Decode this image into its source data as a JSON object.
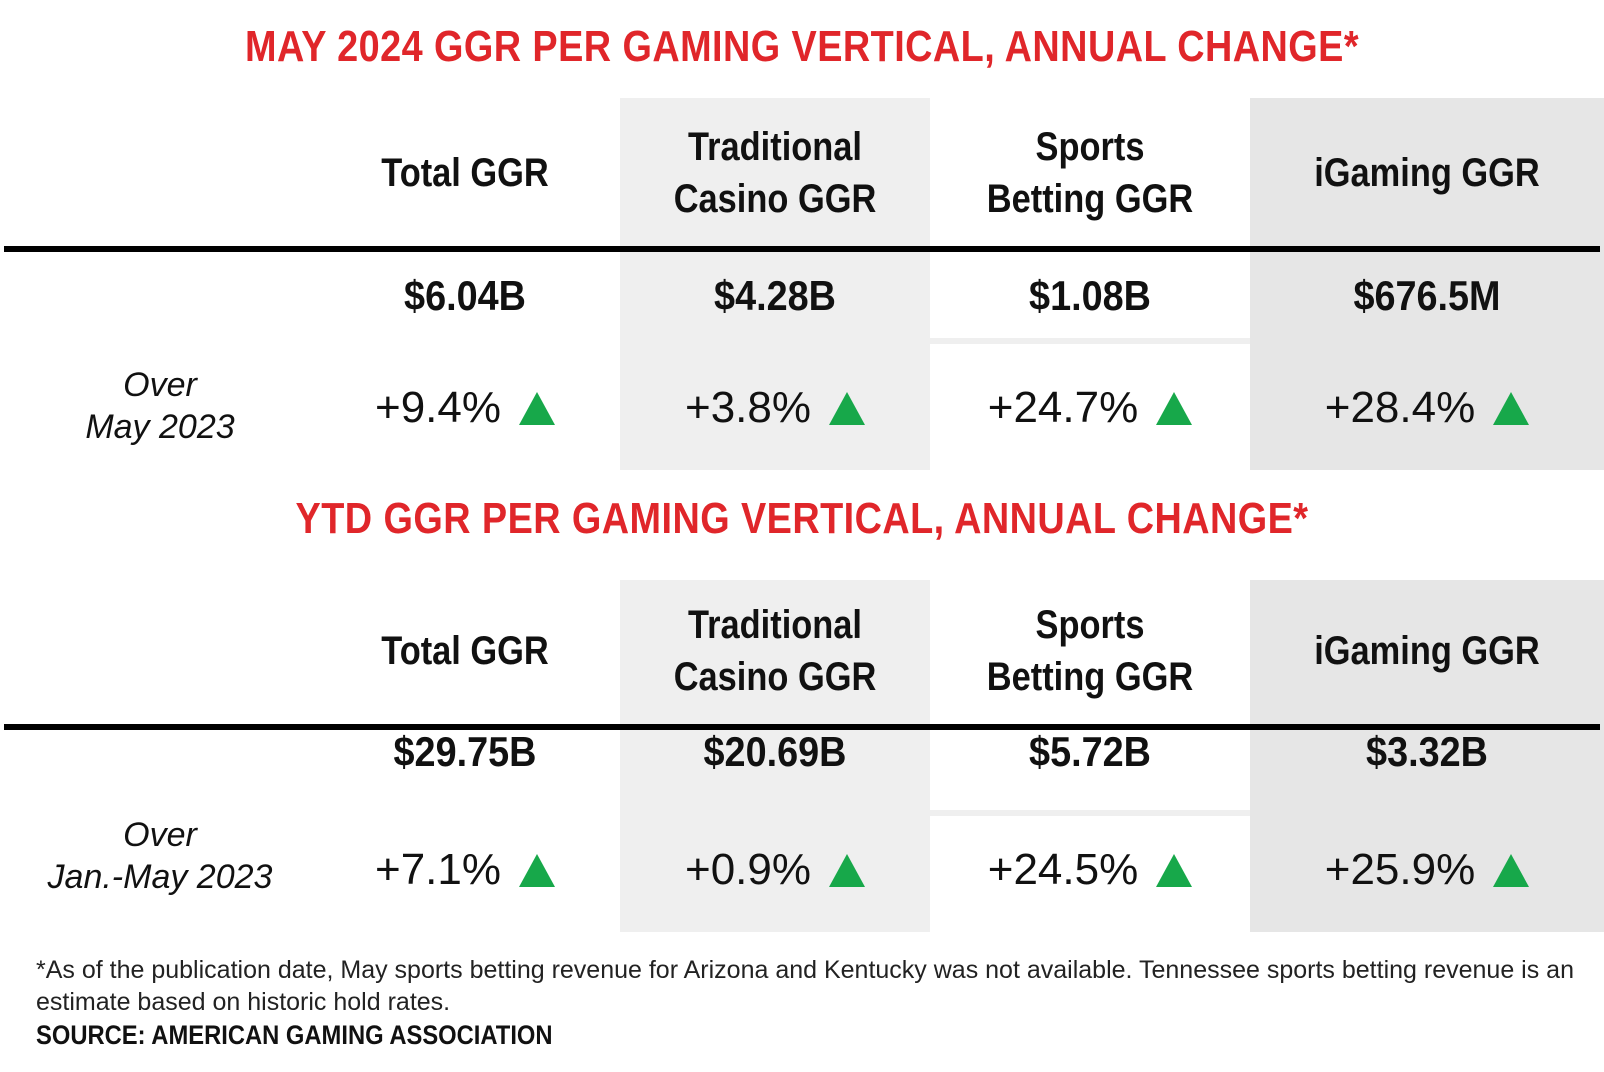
{
  "colors": {
    "title": "#e0262a",
    "up_arrow": "#17a84a",
    "shade": "#efefef",
    "shade_dark": "#e6e6e6"
  },
  "icons": {
    "change_indicator": "up-triangle-icon"
  },
  "columns": [
    "Total GGR",
    "Traditional\nCasino GGR",
    "Sports\nBetting GGR",
    "iGaming GGR"
  ],
  "chart_data": [
    {
      "type": "table",
      "title": "MAY 2024 GGR PER GAMING VERTICAL, ANNUAL CHANGE*",
      "row_label": "Over\nMay 2023",
      "cells": [
        {
          "value": "$6.04B",
          "change": "+9.4%",
          "direction": "up"
        },
        {
          "value": "$4.28B",
          "change": "+3.8%",
          "direction": "up"
        },
        {
          "value": "$1.08B",
          "change": "+24.7%",
          "direction": "up"
        },
        {
          "value": "$676.5M",
          "change": "+28.4%",
          "direction": "up"
        }
      ]
    },
    {
      "type": "table",
      "title": "YTD GGR PER GAMING VERTICAL, ANNUAL CHANGE*",
      "row_label": "Over\nJan.-May 2023",
      "cells": [
        {
          "value": "$29.75B",
          "change": "+7.1%",
          "direction": "up"
        },
        {
          "value": "$20.69B",
          "change": "+0.9%",
          "direction": "up"
        },
        {
          "value": "$5.72B",
          "change": "+24.5%",
          "direction": "up"
        },
        {
          "value": "$3.32B",
          "change": "+25.9%",
          "direction": "up"
        }
      ]
    }
  ],
  "footnote": "*As of the publication date, May sports betting revenue for Arizona and Kentucky was not available. Tennessee sports betting revenue is an estimate based on historic hold rates.",
  "source": "SOURCE: AMERICAN GAMING ASSOCIATION"
}
